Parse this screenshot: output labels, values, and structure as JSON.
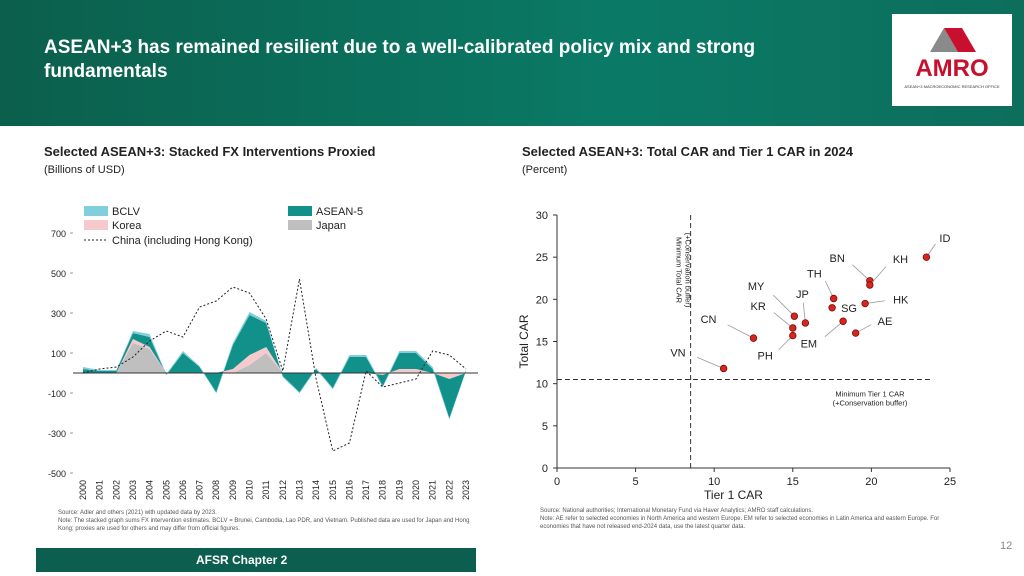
{
  "header": {
    "title": "ASEAN+3 has remained resilient due to a well-calibrated policy mix and strong fundamentals"
  },
  "logo": {
    "name": "AMRO",
    "tagline": "ASEAN+3 MACROECONOMIC RESEARCH OFFICE"
  },
  "chart_data": [
    {
      "type": "area",
      "stacked": true,
      "title": "Selected ASEAN+3: Stacked FX Interventions Proxied",
      "subtitle": "(Billions of USD)",
      "categories": [
        "2000",
        "2001",
        "2002",
        "2003",
        "2004",
        "2005",
        "2006",
        "2007",
        "2008",
        "2009",
        "2010",
        "2011",
        "2012",
        "2013",
        "2014",
        "2015",
        "2016",
        "2017",
        "2018",
        "2019",
        "2020",
        "2021",
        "2022",
        "2023"
      ],
      "series": [
        {
          "name": "BCLV",
          "color": "#7fd0dc",
          "values": [
            10,
            5,
            5,
            10,
            15,
            5,
            10,
            5,
            5,
            10,
            15,
            10,
            5,
            5,
            5,
            5,
            10,
            10,
            5,
            10,
            10,
            10,
            5,
            5
          ]
        },
        {
          "name": "ASEAN-5",
          "color": "#12918a",
          "values": [
            20,
            10,
            10,
            30,
            50,
            -10,
            100,
            30,
            -100,
            120,
            200,
            120,
            -20,
            -100,
            20,
            -80,
            80,
            80,
            -60,
            80,
            80,
            20,
            -200,
            10
          ]
        },
        {
          "name": "Korea",
          "color": "#f6c9cc",
          "values": [
            0,
            0,
            0,
            20,
            10,
            0,
            0,
            0,
            0,
            20,
            50,
            30,
            0,
            0,
            0,
            0,
            0,
            0,
            -10,
            20,
            20,
            0,
            -30,
            0
          ]
        },
        {
          "name": "Japan",
          "color": "#bfbfbf",
          "values": [
            0,
            0,
            0,
            150,
            120,
            0,
            0,
            0,
            0,
            0,
            40,
            100,
            0,
            0,
            0,
            0,
            0,
            0,
            0,
            0,
            0,
            0,
            0,
            0
          ]
        },
        {
          "name": "China (including Hong Kong)",
          "color": "#222222",
          "line": true,
          "values": [
            0,
            20,
            30,
            80,
            160,
            210,
            180,
            330,
            360,
            430,
            400,
            270,
            10,
            470,
            -30,
            -390,
            -350,
            10,
            -70,
            -50,
            -30,
            110,
            90,
            20
          ]
        }
      ],
      "ylim": [
        -500,
        800
      ],
      "yticks": [
        -500,
        -300,
        -100,
        100,
        300,
        500,
        700
      ],
      "source": "Source: Adler and others (2021) with updated data by 2023.",
      "note": "Note: The stacked graph sums FX intervention estimates. BCLV = Brunei, Cambodia, Lao PDR, and Vietnam. Published data are used for Japan and Hong Kong; proxies are used for others and may differ from official figures."
    },
    {
      "type": "scatter",
      "title": "Selected ASEAN+3: Total CAR and Tier 1 CAR in 2024",
      "subtitle": "(Percent)",
      "xlabel": "Tier 1 CAR",
      "ylabel": "Total CAR",
      "labels": [
        "VN",
        "CN",
        "PH",
        "KR",
        "MY",
        "JP",
        "TH",
        "SG",
        "EM",
        "AE",
        "BN",
        "KH",
        "HK",
        "ID"
      ],
      "x": [
        10.6,
        12.5,
        15.0,
        15.0,
        15.1,
        15.8,
        17.6,
        17.5,
        18.2,
        19.0,
        19.9,
        19.9,
        19.6,
        23.5
      ],
      "values": [
        11.8,
        15.4,
        15.7,
        16.6,
        18.0,
        17.2,
        20.1,
        19.0,
        17.4,
        16.0,
        22.2,
        21.7,
        19.5,
        25.0
      ],
      "color": "#d7261e",
      "xlim": [
        0,
        25
      ],
      "xticks": [
        0,
        5,
        10,
        15,
        20,
        25
      ],
      "ylim": [
        0,
        30
      ],
      "yticks": [
        0,
        5,
        10,
        15,
        20,
        25,
        30
      ],
      "x_reference": {
        "value": 8.5,
        "label": [
          "Minimum Total CAR",
          "(+Conservation buffer)"
        ]
      },
      "y_reference": {
        "value": 10.5,
        "label": [
          "Minimum Tier 1 CAR",
          "(+Conservation buffer)"
        ]
      },
      "source": "Source: National authorities; International Monetary Fund via Haver Analytics; AMRO staff calculations.",
      "note": "Note: AE refer to selected economies in North America and western Europe. EM refer to selected economies in Latin America and eastern Europe. For economies that have not released end-2024 data, use the latest quarter data."
    }
  ],
  "footer": {
    "chapter": "AFSR Chapter 2",
    "page": 12
  }
}
